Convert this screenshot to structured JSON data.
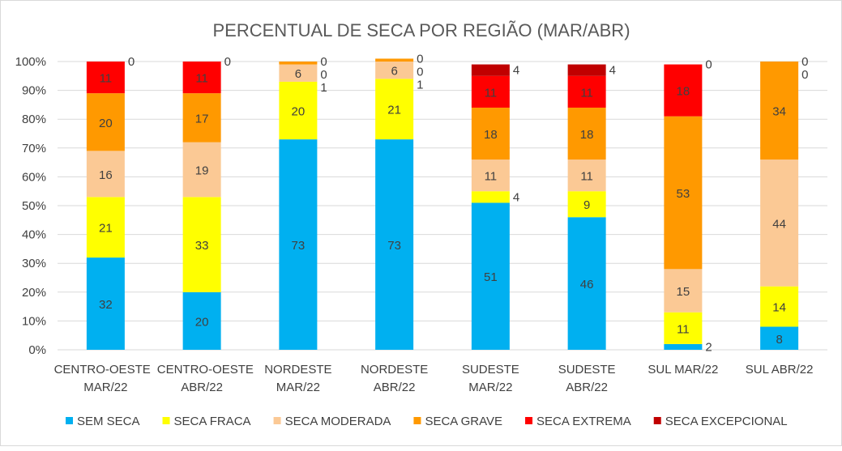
{
  "chart_data": {
    "type": "stacked-bar-100",
    "title": "PERCENTUAL DE SECA POR REGIÃO (MAR/ABR)",
    "categories": [
      [
        "CENTRO-OESTE",
        "MAR/22"
      ],
      [
        "CENTRO-OESTE",
        "ABR/22"
      ],
      [
        "NORDESTE",
        "MAR/22"
      ],
      [
        "NORDESTE",
        "ABR/22"
      ],
      [
        "SUDESTE",
        "MAR/22"
      ],
      [
        "SUDESTE",
        "ABR/22"
      ],
      [
        "SUL MAR/22"
      ],
      [
        "SUL ABR/22"
      ]
    ],
    "yticks": [
      "0%",
      "10%",
      "20%",
      "30%",
      "40%",
      "50%",
      "60%",
      "70%",
      "80%",
      "90%",
      "100%"
    ],
    "ylim": [
      0,
      100
    ],
    "grid": true,
    "legend": "bottom",
    "series": [
      {
        "name": "SEM SECA",
        "color": "#00b0f0",
        "values": [
          32,
          20,
          73,
          73,
          51,
          46,
          2,
          8
        ]
      },
      {
        "name": "SECA FRACA",
        "color": "#ffff00",
        "values": [
          21,
          33,
          20,
          21,
          4,
          9,
          11,
          14
        ]
      },
      {
        "name": "SECA MODERADA",
        "color": "#fbc995",
        "values": [
          16,
          19,
          6,
          6,
          11,
          11,
          15,
          44
        ]
      },
      {
        "name": "SECA GRAVE",
        "color": "#ff9900",
        "values": [
          20,
          17,
          1,
          1,
          18,
          18,
          53,
          34
        ]
      },
      {
        "name": "SECA EXTREMA",
        "color": "#ff0000",
        "values": [
          11,
          11,
          0,
          0,
          11,
          11,
          18,
          0
        ]
      },
      {
        "name": "SECA EXCEPCIONAL",
        "color": "#c00000",
        "values": [
          0,
          0,
          0,
          0,
          4,
          4,
          0,
          0
        ]
      }
    ]
  }
}
